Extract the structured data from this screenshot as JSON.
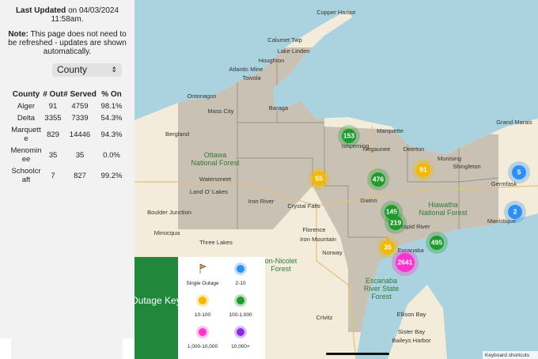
{
  "sidebar": {
    "last_updated_label": "Last Updated",
    "last_updated_text": "on 04/03/2024 11:58am.",
    "note_label": "Note:",
    "note_text": "This page does not need to be refreshed - updates are shown automatically.",
    "select": "County",
    "table": {
      "headers": [
        "County",
        "# Out",
        "# Served",
        "% On"
      ],
      "rows": [
        [
          "Alger",
          "91",
          "4759",
          "98.1%"
        ],
        [
          "Delta",
          "3355",
          "7339",
          "54.3%"
        ],
        [
          "Marquette",
          "829",
          "14446",
          "94.3%"
        ],
        [
          "Menominee",
          "35",
          "35",
          "0.0%"
        ],
        [
          "Schoolcraft",
          "7",
          "827",
          "99.2%"
        ]
      ]
    }
  },
  "map": {
    "places": [
      "Copper Harbor",
      "Calumet Twp",
      "Lake Linden",
      "Houghton",
      "Atlantic Mine",
      "Toivola",
      "Ontonagon",
      "Baraga",
      "Mass City",
      "Bergland",
      "Marquette",
      "Ishpeming",
      "Negaunee",
      "Deerton",
      "Munising",
      "Shingleton",
      "Grand Marais",
      "Germfask",
      "Manistique",
      "Watersmeet",
      "Land O' Lakes",
      "Iron River",
      "Crystal Falls",
      "Gwinn",
      "Boulder Junction",
      "Minocqua",
      "Three Lakes",
      "Florence",
      "Iron Mountain",
      "Norway",
      "Rapid River",
      "Escanaba",
      "Crivitz",
      "Ellison Bay",
      "Sister Bay",
      "Baileys Harbor"
    ],
    "forests": [
      [
        "Ottawa",
        "National Forest"
      ],
      [
        "Hiawatha",
        "National Forest"
      ],
      [
        "Escanaba",
        "River State",
        "Forest"
      ],
      [
        "on-Nicolet",
        "Forest"
      ]
    ],
    "clusters": [
      153,
      55,
      476,
      91,
      145,
      219,
      35,
      495,
      2641,
      5,
      2
    ],
    "attribution": "Keyboard shortcuts"
  },
  "legend": {
    "title": "Outage Key",
    "items": [
      "Single Outage",
      "2-10",
      "10-100",
      "100-1,000",
      "1,000-10,000",
      "10,000+"
    ]
  }
}
